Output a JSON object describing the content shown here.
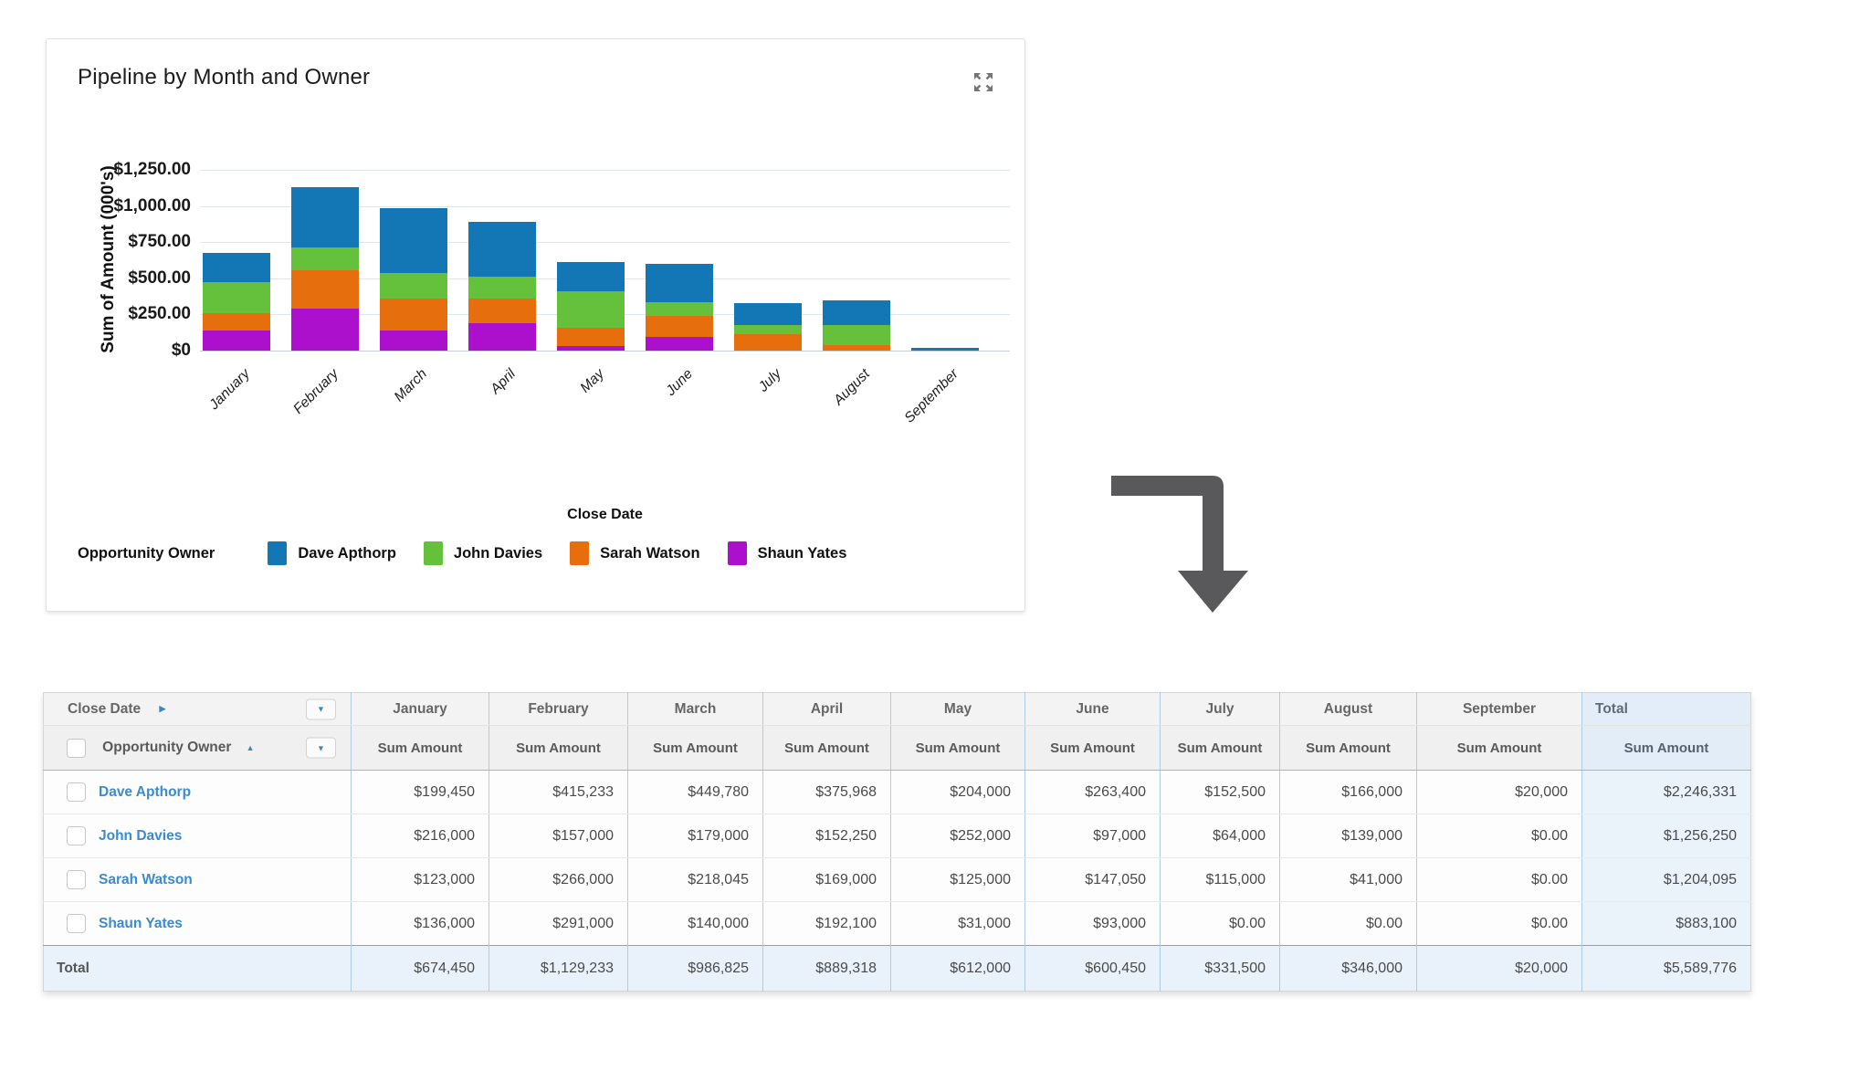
{
  "chart_card": {
    "title": "Pipeline by Month and Owner",
    "expand_icon": "expand-arrows-icon"
  },
  "chart_data": {
    "type": "bar",
    "stacked": true,
    "title": "Pipeline by Month and Owner",
    "xlabel": "Close Date",
    "ylabel": "Sum of Amount (000's)",
    "ylim": [
      0,
      1250
    ],
    "ytick_labels": [
      "$1,250.00",
      "$1,000.00",
      "$750.00",
      "$500.00",
      "$250.00",
      "$0"
    ],
    "grid": true,
    "categories": [
      "January",
      "February",
      "March",
      "April",
      "May",
      "June",
      "July",
      "August",
      "September"
    ],
    "series": [
      {
        "name": "Shaun Yates",
        "color": "#ad10cd",
        "values": [
          136,
          291,
          140,
          192.1,
          31,
          93,
          0,
          0,
          0
        ]
      },
      {
        "name": "Sarah Watson",
        "color": "#e66e0d",
        "values": [
          123,
          266,
          218.045,
          169,
          125,
          147.05,
          115,
          41,
          0
        ]
      },
      {
        "name": "John Davies",
        "color": "#65c13c",
        "values": [
          216,
          157,
          179,
          152.25,
          252,
          97,
          64,
          139,
          0
        ]
      },
      {
        "name": "Dave Apthorp",
        "color": "#1377b6",
        "values": [
          199.45,
          415.233,
          449.78,
          375.968,
          204,
          263.4,
          152.5,
          166,
          20
        ]
      }
    ],
    "legend_title": "Opportunity Owner",
    "legend_position": "bottom",
    "legend_order": [
      "Dave Apthorp",
      "John Davies",
      "Sarah Watson",
      "Shaun Yates"
    ]
  },
  "table": {
    "corner_header": "Close Date",
    "row_header": "Opportunity Owner",
    "measure_label": "Sum Amount",
    "columns": [
      "January",
      "February",
      "March",
      "April",
      "May",
      "June",
      "July",
      "August",
      "September",
      "Total"
    ],
    "rows": [
      {
        "owner": "Dave Apthorp",
        "values": [
          "$199,450",
          "$415,233",
          "$449,780",
          "$375,968",
          "$204,000",
          "$263,400",
          "$152,500",
          "$166,000",
          "$20,000",
          "$2,246,331"
        ]
      },
      {
        "owner": "John Davies",
        "values": [
          "$216,000",
          "$157,000",
          "$179,000",
          "$152,250",
          "$252,000",
          "$97,000",
          "$64,000",
          "$139,000",
          "$0.00",
          "$1,256,250"
        ]
      },
      {
        "owner": "Sarah Watson",
        "values": [
          "$123,000",
          "$266,000",
          "$218,045",
          "$169,000",
          "$125,000",
          "$147,050",
          "$115,000",
          "$41,000",
          "$0.00",
          "$1,204,095"
        ]
      },
      {
        "owner": "Shaun Yates",
        "values": [
          "$136,000",
          "$291,000",
          "$140,000",
          "$192,100",
          "$31,000",
          "$93,000",
          "$0.00",
          "$0.00",
          "$0.00",
          "$883,100"
        ]
      }
    ],
    "total_row": {
      "label": "Total",
      "values": [
        "$674,450",
        "$1,129,233",
        "$986,825",
        "$889,318",
        "$612,000",
        "$600,450",
        "$331,500",
        "$346,000",
        "$20,000",
        "$5,589,776"
      ]
    }
  },
  "colors": {
    "accent_blue": "#3e86bb",
    "link_blue": "#3a8bd0",
    "arrow_gray": "#59595b",
    "total_col_bg": "#eaf2fa"
  },
  "icons": {
    "expand": "expand-arrows-icon",
    "column_menu": "chevron-down-icon",
    "sort_asc": "triangle-up-icon",
    "drill": "triangle-right-icon"
  }
}
